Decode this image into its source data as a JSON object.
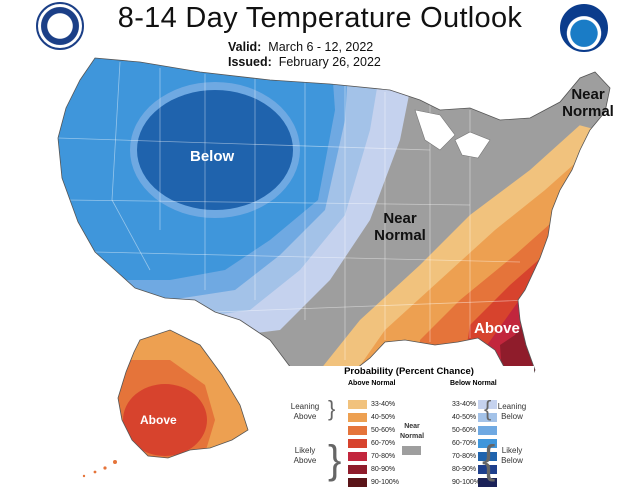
{
  "header": {
    "title": "8-14 Day Temperature Outlook",
    "valid_label": "Valid:",
    "valid_value": "March 6 - 12, 2022",
    "issued_label": "Issued:",
    "issued_value": "February 26, 2022"
  },
  "map_labels": {
    "below": "Below",
    "near_normal_central": "Near Normal",
    "near_normal_ne_1": "Near",
    "near_normal_ne_2": "Normal",
    "above_se": "Above",
    "above_ak": "Above"
  },
  "legend": {
    "title": "Probability (Percent Chance)",
    "above_header": "Above Normal",
    "below_header": "Below Normal",
    "near_label_1": "Near",
    "near_label_2": "Normal",
    "leaning_above": "Leaning Above",
    "likely_above": "Likely Above",
    "leaning_below": "Leaning Below",
    "likely_below": "Likely Below",
    "ranges": [
      "33-40%",
      "40-50%",
      "50-60%",
      "60-70%",
      "70-80%",
      "80-90%",
      "90-100%"
    ],
    "above_colors": [
      "#f1c27d",
      "#eda051",
      "#e5743a",
      "#d7432d",
      "#c2263d",
      "#8f1c2b",
      "#5a1418"
    ],
    "below_colors": [
      "#c5d2ee",
      "#a3c2e8",
      "#6fa9e2",
      "#3f96db",
      "#1f63ad",
      "#1e3f8c",
      "#1b2258"
    ],
    "near_color": "#9e9e9e"
  }
}
